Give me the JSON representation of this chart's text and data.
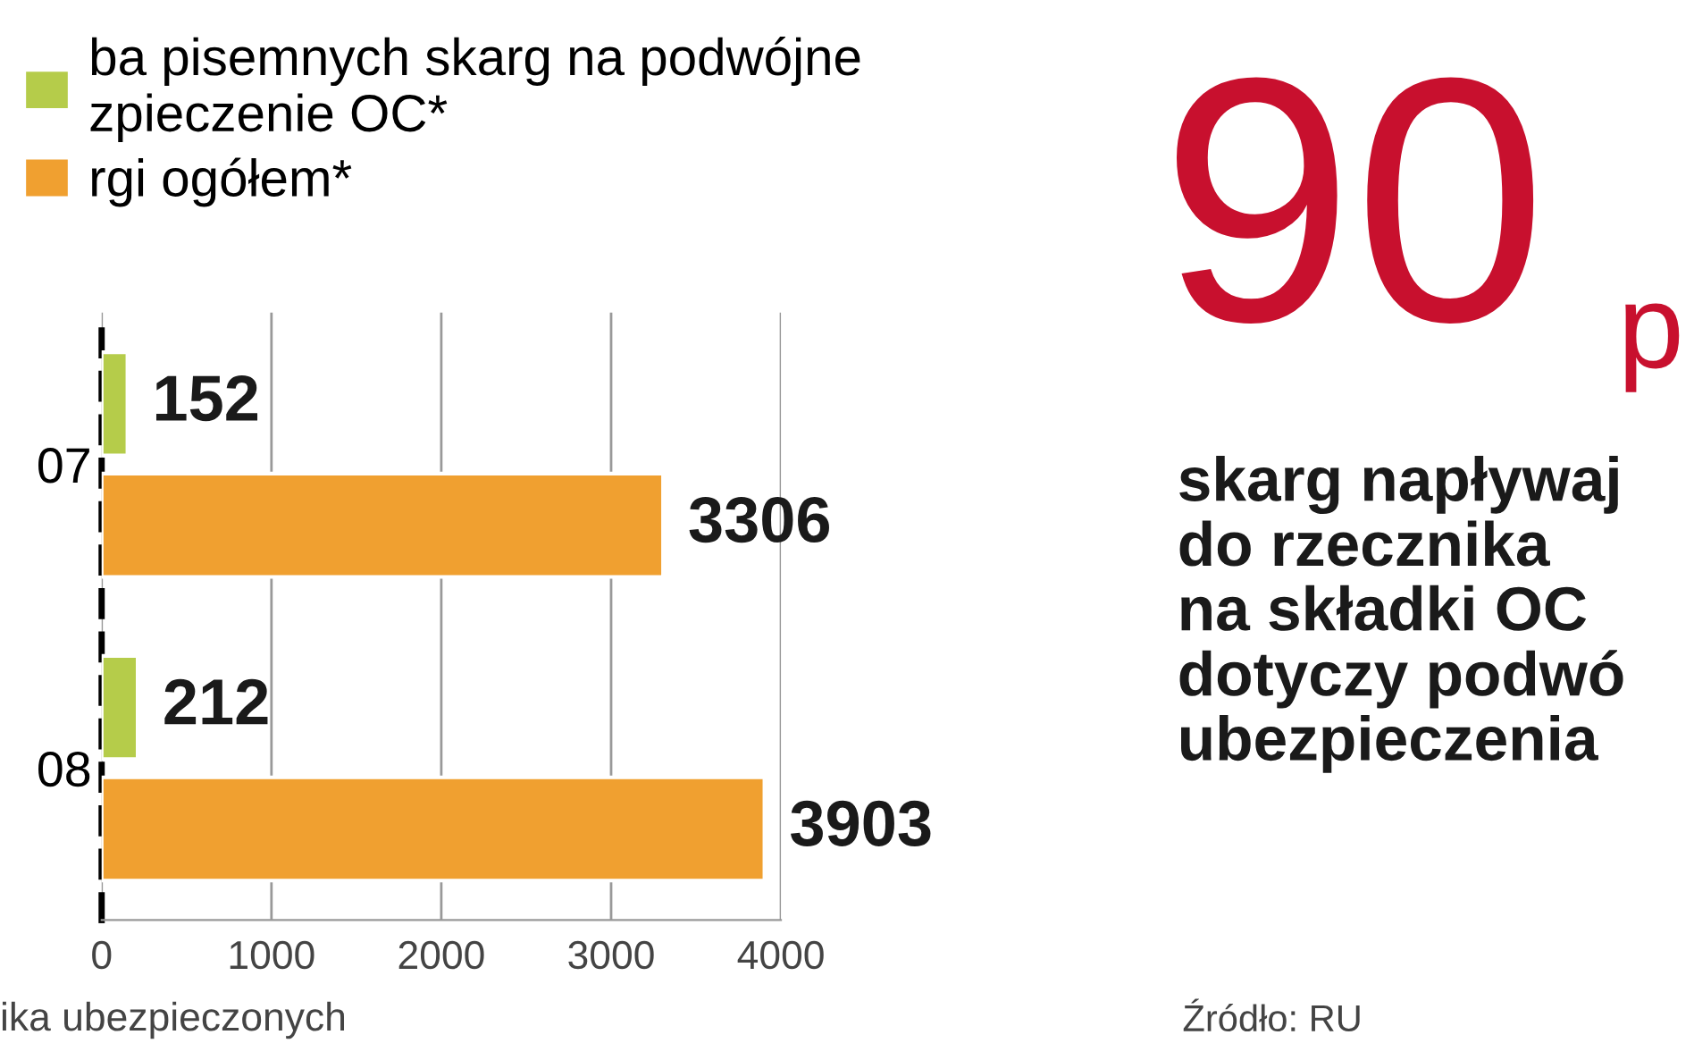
{
  "chart_data": {
    "type": "bar",
    "orientation": "horizontal",
    "categories": [
      "07",
      "08"
    ],
    "series": [
      {
        "name": "ba pisemnych skarg na podwójne\nzpieczenie OC*",
        "color": "#b5cc4a",
        "values": [
          152,
          212
        ]
      },
      {
        "name": "rgi ogółem*",
        "color": "#f0a030",
        "values": [
          3306,
          3903
        ]
      }
    ],
    "xlim": [
      0,
      4000
    ],
    "xticks": [
      0,
      1000,
      2000,
      3000,
      4000
    ],
    "grid": "x",
    "legend": "top left",
    "data_labels": true,
    "annotations": [
      "ika ubezpieczonych",
      "90",
      "p",
      "skarg napływaj\ndo rzecznika\nna składki OC\ndotyczy podwó\nubezpieczenia",
      "Źródło: RU"
    ]
  }
}
